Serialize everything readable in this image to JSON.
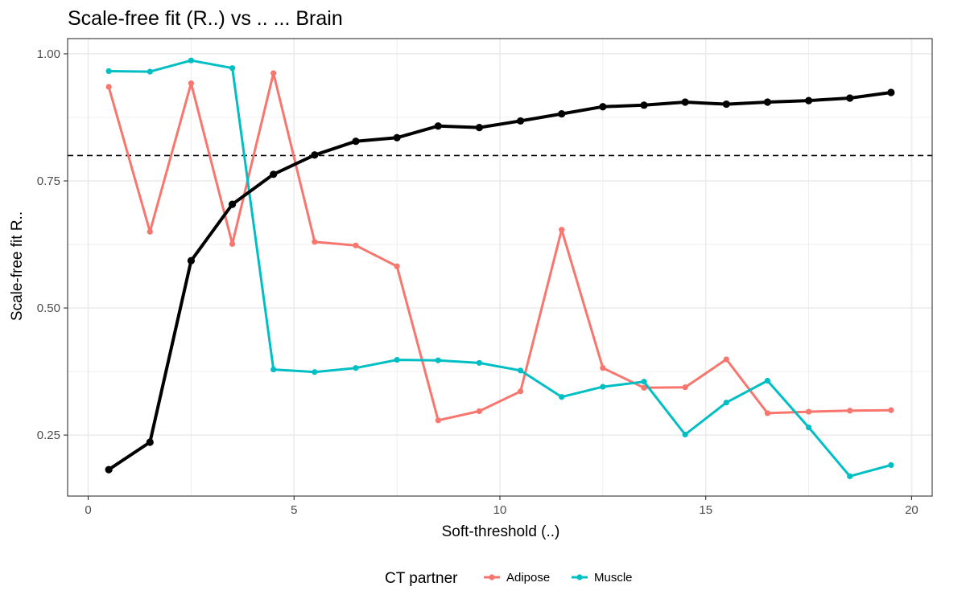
{
  "chart_data": {
    "type": "line",
    "title": "Scale-free fit (R..) vs .. ... Brain",
    "xlabel": "Soft-threshold (..)",
    "ylabel": "Scale-free fit R..",
    "xlim": [
      -0.5,
      20.5
    ],
    "ylim": [
      0.13,
      1.03
    ],
    "x_ticks": [
      0,
      5,
      10,
      15,
      20
    ],
    "y_ticks": [
      0.25,
      0.5,
      0.75,
      1.0
    ],
    "x_tick_labels": [
      "0",
      "5",
      "10",
      "15",
      "20"
    ],
    "y_tick_labels": [
      "0.25",
      "0.50",
      "0.75",
      "1.00"
    ],
    "reference_line": {
      "y": 0.8,
      "style": "dashed"
    },
    "grid": true,
    "x": [
      0.5,
      1.5,
      2.5,
      3.5,
      4.5,
      5.5,
      6.5,
      7.5,
      8.5,
      9.5,
      10.5,
      11.5,
      12.5,
      13.5,
      14.5,
      15.5,
      16.5,
      17.5,
      18.5,
      19.5
    ],
    "series": [
      {
        "values": [
          0.182,
          0.236,
          0.593,
          0.704,
          0.763,
          0.801,
          0.828,
          0.835,
          0.858,
          0.855,
          0.868,
          0.882,
          0.896,
          0.899,
          0.905,
          0.901,
          0.905,
          0.908,
          0.913,
          0.924
        ],
        "color": "#000000",
        "in_legend": false
      },
      {
        "name": "Adipose",
        "values": [
          0.935,
          0.65,
          0.942,
          0.626,
          0.962,
          0.63,
          0.623,
          0.582,
          0.279,
          0.297,
          0.336,
          0.654,
          0.382,
          0.343,
          0.344,
          0.399,
          0.293,
          0.296,
          0.298,
          0.299
        ],
        "color": "#F8766D",
        "in_legend": true
      },
      {
        "name": "Muscle",
        "values": [
          0.966,
          0.965,
          0.987,
          0.972,
          0.379,
          0.374,
          0.382,
          0.398,
          0.397,
          0.392,
          0.377,
          0.325,
          0.345,
          0.355,
          0.251,
          0.314,
          0.357,
          0.265,
          0.169,
          0.191
        ],
        "color": "#00BFC4",
        "in_legend": true
      }
    ],
    "legend": {
      "title": "CT partner",
      "position": "bottom"
    }
  }
}
